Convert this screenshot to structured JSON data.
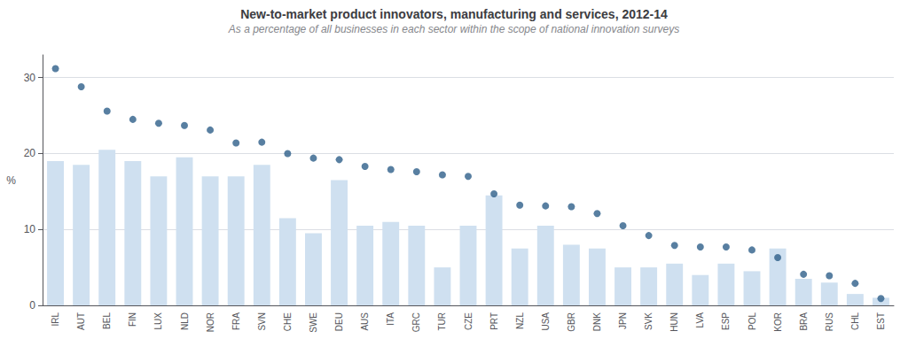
{
  "chart_data": {
    "type": "bar",
    "title": "New-to-market product innovators, manufacturing and services, 2012-14",
    "subtitle": "As a percentage of all businesses in each sector within the scope of national innovation surveys",
    "ylabel": "%",
    "categories": [
      "IRL",
      "AUT",
      "BEL",
      "FIN",
      "LUX",
      "NLD",
      "NOR",
      "FRA",
      "SVN",
      "CHE",
      "SWE",
      "DEU",
      "AUS",
      "ITA",
      "GRC",
      "TUR",
      "CZE",
      "PRT",
      "NZL",
      "USA",
      "GBR",
      "DNK",
      "JPN",
      "SVK",
      "HUN",
      "LVA",
      "ESP",
      "POL",
      "KOR",
      "BRA",
      "RUS",
      "CHL",
      "EST"
    ],
    "series": [
      {
        "type": "bar",
        "color": "#cfe0f0",
        "values": [
          19.0,
          18.5,
          20.5,
          19.0,
          17.0,
          19.5,
          17.0,
          17.0,
          18.5,
          11.5,
          9.5,
          16.5,
          10.5,
          11.0,
          10.5,
          5.0,
          10.5,
          14.5,
          7.5,
          10.5,
          8.0,
          7.5,
          5.0,
          5.0,
          5.5,
          4.0,
          5.5,
          4.5,
          7.5,
          3.5,
          3.0,
          1.5,
          1.0
        ]
      },
      {
        "type": "scatter",
        "color": "#2e5f8a",
        "values": [
          31.2,
          28.8,
          25.6,
          24.5,
          24.0,
          23.7,
          23.1,
          21.4,
          21.5,
          20.0,
          19.4,
          19.2,
          18.3,
          17.9,
          17.6,
          17.2,
          17.0,
          14.7,
          13.2,
          13.1,
          13.0,
          12.1,
          10.5,
          9.2,
          7.9,
          7.7,
          7.7,
          7.3,
          6.3,
          4.1,
          3.9,
          2.9,
          0.9
        ]
      }
    ],
    "ylim": [
      0,
      33
    ],
    "yticks": [
      0,
      10,
      20,
      30
    ],
    "grid": true
  }
}
